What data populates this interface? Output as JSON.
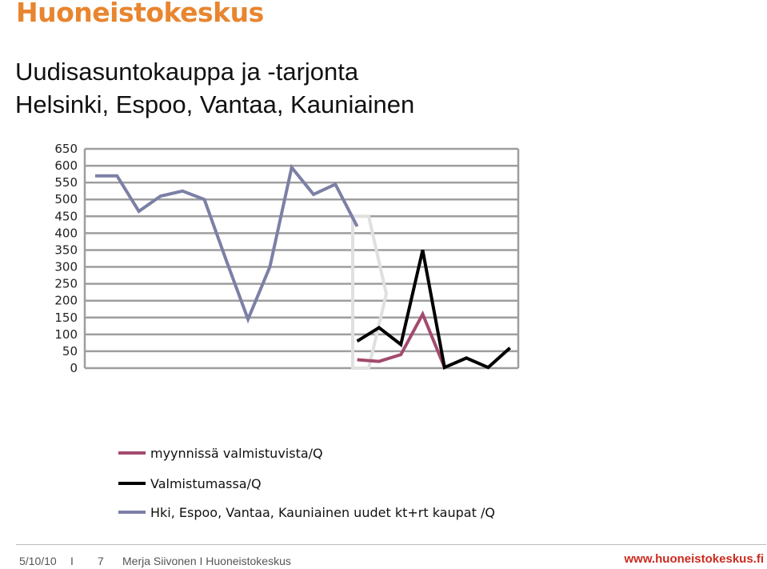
{
  "brand": "Huoneistokeskus",
  "title": [
    "Uudisasuntokauppa ja -tarjonta",
    "Helsinki, Espoo, Vantaa, Kauniainen"
  ],
  "footer": {
    "date": "5/10/10",
    "separator": "I",
    "page": "7",
    "author": "Merja Siivonen I Huoneistokeskus",
    "url": "www.huoneistokeskus.fi"
  },
  "colors": {
    "brand": "#e8852f",
    "url": "#cc2a1e",
    "grid": "#9e9e9e",
    "series_pink": "#a34a6e",
    "series_black": "#000000",
    "series_blue": "#7c80a6",
    "bracket": "#e0e0e0"
  },
  "chart_data": {
    "type": "line",
    "title": "",
    "xlabel": "",
    "ylabel": "",
    "ylim": [
      0,
      650
    ],
    "yticks": [
      0,
      50,
      100,
      150,
      200,
      250,
      300,
      350,
      400,
      450,
      500,
      550,
      600,
      650
    ],
    "grid": true,
    "legend_position": "bottom",
    "x": [
      1,
      2,
      3,
      4,
      5,
      6,
      7,
      8,
      9,
      10,
      11,
      12,
      13,
      14,
      15,
      16,
      17,
      18,
      19,
      20
    ],
    "series": [
      {
        "name": "myynnissä valmistuvista/Q",
        "color": "#a34a6e",
        "values": [
          null,
          null,
          null,
          null,
          null,
          null,
          null,
          null,
          null,
          null,
          null,
          null,
          25,
          20,
          40,
          160,
          2,
          null,
          null,
          null
        ]
      },
      {
        "name": "Valmistumassa/Q",
        "color": "#000000",
        "values": [
          null,
          null,
          null,
          null,
          null,
          null,
          null,
          null,
          null,
          null,
          null,
          null,
          80,
          120,
          70,
          350,
          2,
          30,
          2,
          60
        ]
      },
      {
        "name": "Hki, Espoo, Vantaa, Kauniainen uudet kt+rt kaupat /Q",
        "color": "#7c80a6",
        "values": [
          570,
          570,
          465,
          510,
          525,
          500,
          320,
          145,
          300,
          595,
          515,
          545,
          420,
          null,
          null,
          null,
          null,
          null,
          null,
          null
        ]
      }
    ]
  }
}
